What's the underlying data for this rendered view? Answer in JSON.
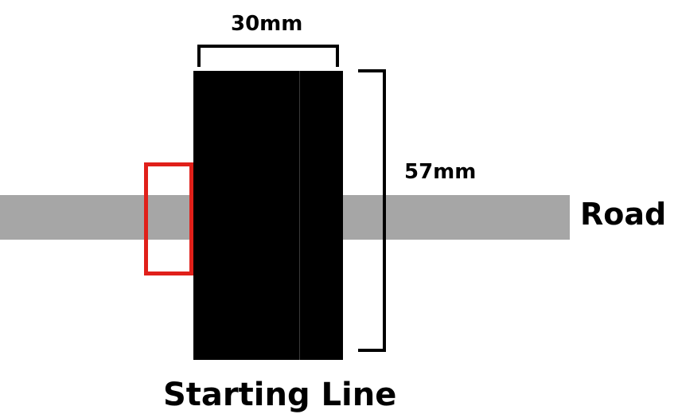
{
  "labels": {
    "width_dimension": "30mm",
    "height_dimension": "57mm",
    "road": "Road",
    "starting_line": "Starting Line"
  },
  "colors": {
    "road": "#a6a6a6",
    "block": "#000000",
    "block_divider": "#3a3a3a",
    "sensor_box": "#e0201a",
    "bracket": "#000000"
  }
}
